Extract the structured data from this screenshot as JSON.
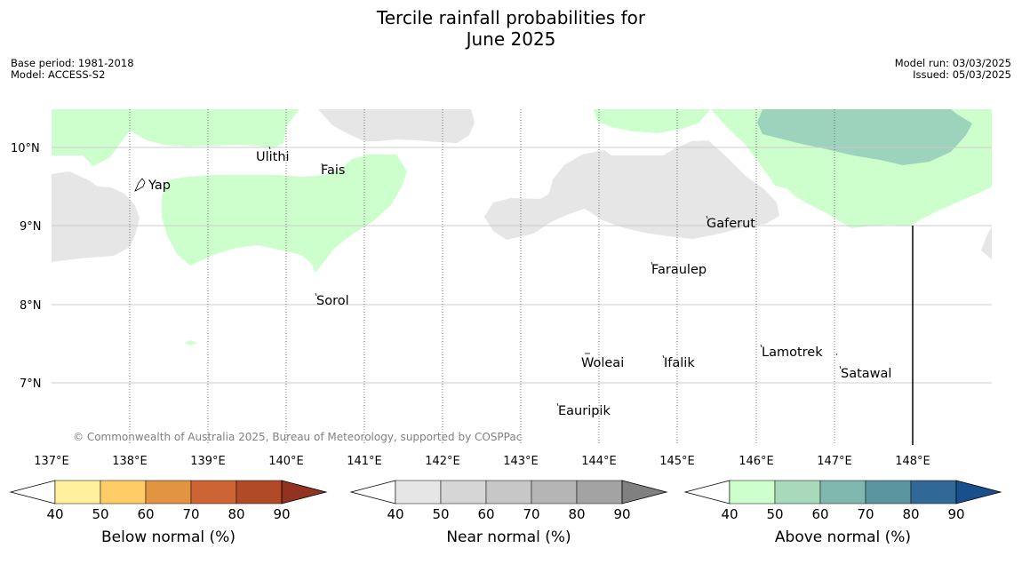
{
  "title": {
    "line1": "Tercile rainfall probabilities for",
    "line2": "June 2025"
  },
  "meta_left": {
    "base_period": "Base period: 1981-2018",
    "model": "Model: ACCESS-S2"
  },
  "meta_right": {
    "model_run": "Model run: 03/03/2025",
    "issued": "Issued: 05/03/2025"
  },
  "map": {
    "latitude_labels": [
      "10°N",
      "9°N",
      "8°N",
      "7°N"
    ],
    "longitude_labels": [
      "137°E",
      "138°E",
      "139°E",
      "140°E",
      "141°E",
      "142°E",
      "143°E",
      "144°E",
      "145°E",
      "146°E",
      "147°E",
      "148°E"
    ],
    "places": [
      {
        "name": "Yap"
      },
      {
        "name": "Ulithi"
      },
      {
        "name": "Fais"
      },
      {
        "name": "Gaferut"
      },
      {
        "name": "Faraulep"
      },
      {
        "name": "Sorol"
      },
      {
        "name": "Lamotrek"
      },
      {
        "name": "Woleai"
      },
      {
        "name": "Ifalik"
      },
      {
        "name": "Satawal"
      },
      {
        "name": "Eauripik"
      }
    ],
    "copyright": "© Commonwealth of Australia 2025, Bureau of Meteorology, supported by COSPPac",
    "region_colors": {
      "above_normal": "#ccffcc",
      "above_normal_strong": "#9dd3bc",
      "near_normal": "#e6e6e6"
    }
  },
  "colorbars": [
    {
      "title": "Below normal (%)",
      "ticks": [
        "40",
        "50",
        "60",
        "70",
        "80",
        "90"
      ],
      "colors": [
        "#fff09e",
        "#ffcc66",
        "#e39443",
        "#cd6433",
        "#b04a27",
        "#923321"
      ]
    },
    {
      "title": "Near normal (%)",
      "ticks": [
        "40",
        "50",
        "60",
        "70",
        "80",
        "90"
      ],
      "colors": [
        "#e6e6e6",
        "#d6d6d6",
        "#c7c7c7",
        "#b5b5b5",
        "#a3a3a3",
        "#808080"
      ]
    },
    {
      "title": "Above normal (%)",
      "ticks": [
        "40",
        "50",
        "60",
        "70",
        "80",
        "90"
      ],
      "colors": [
        "#ccffcc",
        "#a8d9ba",
        "#80b8b0",
        "#5b95a0",
        "#306898",
        "#17508a"
      ]
    }
  ]
}
